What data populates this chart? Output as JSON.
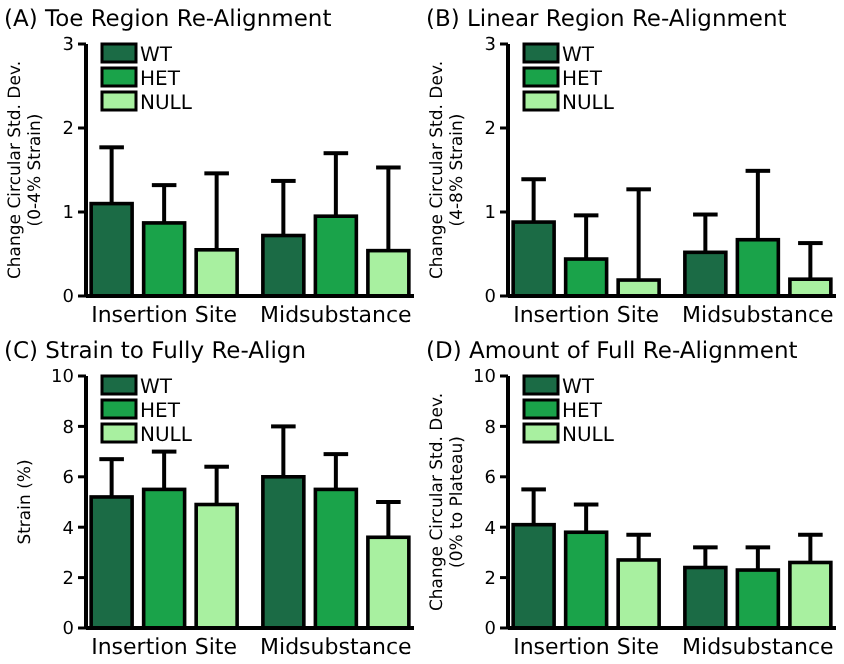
{
  "chart_data": [
    {
      "type": "bar",
      "title": "(A) Toe Region Re-Alignment",
      "ylabel": "Change Circular Std. Dev.\n(0-4% Strain)",
      "categories": [
        "Insertion Site",
        "Midsubstance"
      ],
      "ylim": [
        0,
        3
      ],
      "yticks": [
        0,
        1,
        2,
        3
      ],
      "legend": "top left",
      "grid": false,
      "series": [
        {
          "name": "WT",
          "color": "#1b6b45",
          "values": [
            1.1,
            0.72
          ],
          "errors": [
            [
              1.1,
              1.77
            ],
            [
              0.72,
              1.37
            ]
          ]
        },
        {
          "name": "HET",
          "color": "#1aa34a",
          "values": [
            0.87,
            0.95
          ],
          "errors": [
            [
              0.87,
              1.32
            ],
            [
              0.95,
              1.7
            ]
          ]
        },
        {
          "name": "NULL",
          "color": "#a8f0a0",
          "values": [
            0.55,
            0.54
          ],
          "errors": [
            [
              0.55,
              1.46
            ],
            [
              0.54,
              1.53
            ]
          ]
        }
      ]
    },
    {
      "type": "bar",
      "title": "(B) Linear Region Re-Alignment",
      "ylabel": "Change Circular Std. Dev.\n(4-8% Strain)",
      "categories": [
        "Insertion Site",
        "Midsubstance"
      ],
      "ylim": [
        0,
        3
      ],
      "yticks": [
        0,
        1,
        2,
        3
      ],
      "legend": "top left",
      "grid": false,
      "series": [
        {
          "name": "WT",
          "color": "#1b6b45",
          "values": [
            0.88,
            0.52
          ],
          "errors": [
            [
              0.88,
              1.39
            ],
            [
              0.52,
              0.97
            ]
          ]
        },
        {
          "name": "HET",
          "color": "#1aa34a",
          "values": [
            0.44,
            0.67
          ],
          "errors": [
            [
              0.44,
              0.96
            ],
            [
              0.67,
              1.49
            ]
          ]
        },
        {
          "name": "NULL",
          "color": "#a8f0a0",
          "values": [
            0.19,
            0.2
          ],
          "errors": [
            [
              0.19,
              1.27
            ],
            [
              0.2,
              0.63
            ]
          ]
        }
      ]
    },
    {
      "type": "bar",
      "title": "(C) Strain to Fully Re-Align",
      "ylabel": "Strain (%)",
      "categories": [
        "Insertion Site",
        "Midsubstance"
      ],
      "ylim": [
        0,
        10
      ],
      "yticks": [
        0,
        2,
        4,
        6,
        8,
        10
      ],
      "legend": "top left",
      "grid": false,
      "series": [
        {
          "name": "WT",
          "color": "#1b6b45",
          "values": [
            5.2,
            6.0
          ],
          "errors": [
            [
              5.2,
              6.7
            ],
            [
              6.0,
              8.0
            ]
          ]
        },
        {
          "name": "HET",
          "color": "#1aa34a",
          "values": [
            5.5,
            5.5
          ],
          "errors": [
            [
              5.5,
              7.0
            ],
            [
              5.5,
              6.9
            ]
          ]
        },
        {
          "name": "NULL",
          "color": "#a8f0a0",
          "values": [
            4.9,
            3.6
          ],
          "errors": [
            [
              4.9,
              6.4
            ],
            [
              3.6,
              5.0
            ]
          ]
        }
      ]
    },
    {
      "type": "bar",
      "title": "(D) Amount of Full Re-Alignment",
      "ylabel": "Change Circular Std. Dev.\n(0% to Plateau)",
      "categories": [
        "Insertion Site",
        "Midsubstance"
      ],
      "ylim": [
        0,
        10
      ],
      "yticks": [
        0,
        2,
        4,
        6,
        8,
        10
      ],
      "legend": "top left",
      "grid": false,
      "series": [
        {
          "name": "WT",
          "color": "#1b6b45",
          "values": [
            4.1,
            2.4
          ],
          "errors": [
            [
              4.1,
              5.5
            ],
            [
              2.4,
              3.2
            ]
          ]
        },
        {
          "name": "HET",
          "color": "#1aa34a",
          "values": [
            3.8,
            2.3
          ],
          "errors": [
            [
              3.8,
              4.9
            ],
            [
              2.3,
              3.2
            ]
          ]
        },
        {
          "name": "NULL",
          "color": "#a8f0a0",
          "values": [
            2.7,
            2.6
          ],
          "errors": [
            [
              2.7,
              3.7
            ],
            [
              2.6,
              3.7
            ]
          ]
        }
      ]
    }
  ]
}
